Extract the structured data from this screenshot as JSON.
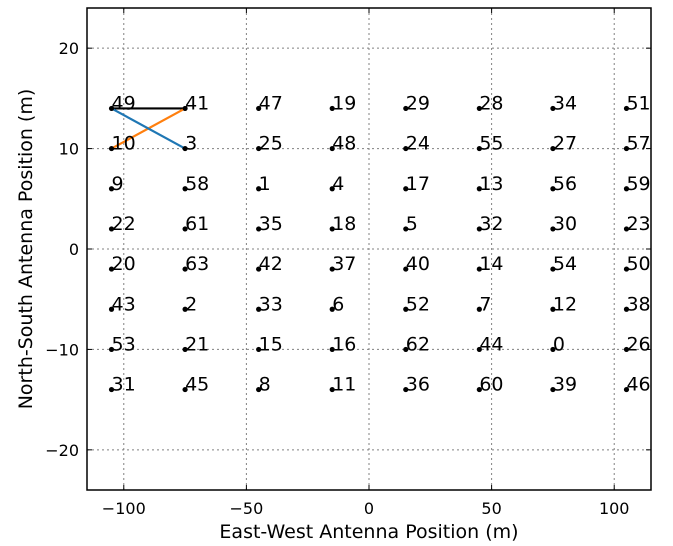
{
  "chart_data": {
    "type": "scatter",
    "title": "",
    "xlabel": "East-West Antenna Position (m)",
    "ylabel": "North-South Antenna Position (m)",
    "xlim": [
      -115,
      115
    ],
    "ylim": [
      -24,
      24
    ],
    "xticks": [
      -100,
      -50,
      0,
      50,
      100
    ],
    "yticks": [
      -20,
      -10,
      0,
      10,
      20
    ],
    "xtick_labels": [
      "−100",
      "−50",
      "0",
      "50",
      "100"
    ],
    "ytick_labels": [
      "−20",
      "−10",
      "0",
      "10",
      "20"
    ],
    "grid": true,
    "point_color": "#000000",
    "antennas": [
      {
        "id": "49",
        "x": -105,
        "y": 14
      },
      {
        "id": "41",
        "x": -75,
        "y": 14
      },
      {
        "id": "47",
        "x": -45,
        "y": 14
      },
      {
        "id": "19",
        "x": -15,
        "y": 14
      },
      {
        "id": "29",
        "x": 15,
        "y": 14
      },
      {
        "id": "28",
        "x": 45,
        "y": 14
      },
      {
        "id": "34",
        "x": 75,
        "y": 14
      },
      {
        "id": "51",
        "x": 105,
        "y": 14
      },
      {
        "id": "10",
        "x": -105,
        "y": 10
      },
      {
        "id": "3",
        "x": -75,
        "y": 10
      },
      {
        "id": "25",
        "x": -45,
        "y": 10
      },
      {
        "id": "48",
        "x": -15,
        "y": 10
      },
      {
        "id": "24",
        "x": 15,
        "y": 10
      },
      {
        "id": "55",
        "x": 45,
        "y": 10
      },
      {
        "id": "27",
        "x": 75,
        "y": 10
      },
      {
        "id": "57",
        "x": 105,
        "y": 10
      },
      {
        "id": "9",
        "x": -105,
        "y": 6
      },
      {
        "id": "58",
        "x": -75,
        "y": 6
      },
      {
        "id": "1",
        "x": -45,
        "y": 6
      },
      {
        "id": "4",
        "x": -15,
        "y": 6
      },
      {
        "id": "17",
        "x": 15,
        "y": 6
      },
      {
        "id": "13",
        "x": 45,
        "y": 6
      },
      {
        "id": "56",
        "x": 75,
        "y": 6
      },
      {
        "id": "59",
        "x": 105,
        "y": 6
      },
      {
        "id": "22",
        "x": -105,
        "y": 2
      },
      {
        "id": "61",
        "x": -75,
        "y": 2
      },
      {
        "id": "35",
        "x": -45,
        "y": 2
      },
      {
        "id": "18",
        "x": -15,
        "y": 2
      },
      {
        "id": "5",
        "x": 15,
        "y": 2
      },
      {
        "id": "32",
        "x": 45,
        "y": 2
      },
      {
        "id": "30",
        "x": 75,
        "y": 2
      },
      {
        "id": "23",
        "x": 105,
        "y": 2
      },
      {
        "id": "20",
        "x": -105,
        "y": -2
      },
      {
        "id": "63",
        "x": -75,
        "y": -2
      },
      {
        "id": "42",
        "x": -45,
        "y": -2
      },
      {
        "id": "37",
        "x": -15,
        "y": -2
      },
      {
        "id": "40",
        "x": 15,
        "y": -2
      },
      {
        "id": "14",
        "x": 45,
        "y": -2
      },
      {
        "id": "54",
        "x": 75,
        "y": -2
      },
      {
        "id": "50",
        "x": 105,
        "y": -2
      },
      {
        "id": "43",
        "x": -105,
        "y": -6
      },
      {
        "id": "2",
        "x": -75,
        "y": -6
      },
      {
        "id": "33",
        "x": -45,
        "y": -6
      },
      {
        "id": "6",
        "x": -15,
        "y": -6
      },
      {
        "id": "52",
        "x": 15,
        "y": -6
      },
      {
        "id": "7",
        "x": 45,
        "y": -6
      },
      {
        "id": "12",
        "x": 75,
        "y": -6
      },
      {
        "id": "38",
        "x": 105,
        "y": -6
      },
      {
        "id": "53",
        "x": -105,
        "y": -10
      },
      {
        "id": "21",
        "x": -75,
        "y": -10
      },
      {
        "id": "15",
        "x": -45,
        "y": -10
      },
      {
        "id": "16",
        "x": -15,
        "y": -10
      },
      {
        "id": "62",
        "x": 15,
        "y": -10
      },
      {
        "id": "44",
        "x": 45,
        "y": -10
      },
      {
        "id": "0",
        "x": 75,
        "y": -10
      },
      {
        "id": "26",
        "x": 105,
        "y": -10
      },
      {
        "id": "31",
        "x": -105,
        "y": -14
      },
      {
        "id": "45",
        "x": -75,
        "y": -14
      },
      {
        "id": "8",
        "x": -45,
        "y": -14
      },
      {
        "id": "11",
        "x": -15,
        "y": -14
      },
      {
        "id": "36",
        "x": 15,
        "y": -14
      },
      {
        "id": "60",
        "x": 45,
        "y": -14
      },
      {
        "id": "39",
        "x": 75,
        "y": -14
      },
      {
        "id": "46",
        "x": 105,
        "y": -14
      }
    ],
    "baselines": [
      {
        "from": "49",
        "to": "41",
        "color": "#000000"
      },
      {
        "from": "10",
        "to": "41",
        "color": "#ff7f0e"
      },
      {
        "from": "49",
        "to": "3",
        "color": "#1f77b4"
      }
    ]
  }
}
